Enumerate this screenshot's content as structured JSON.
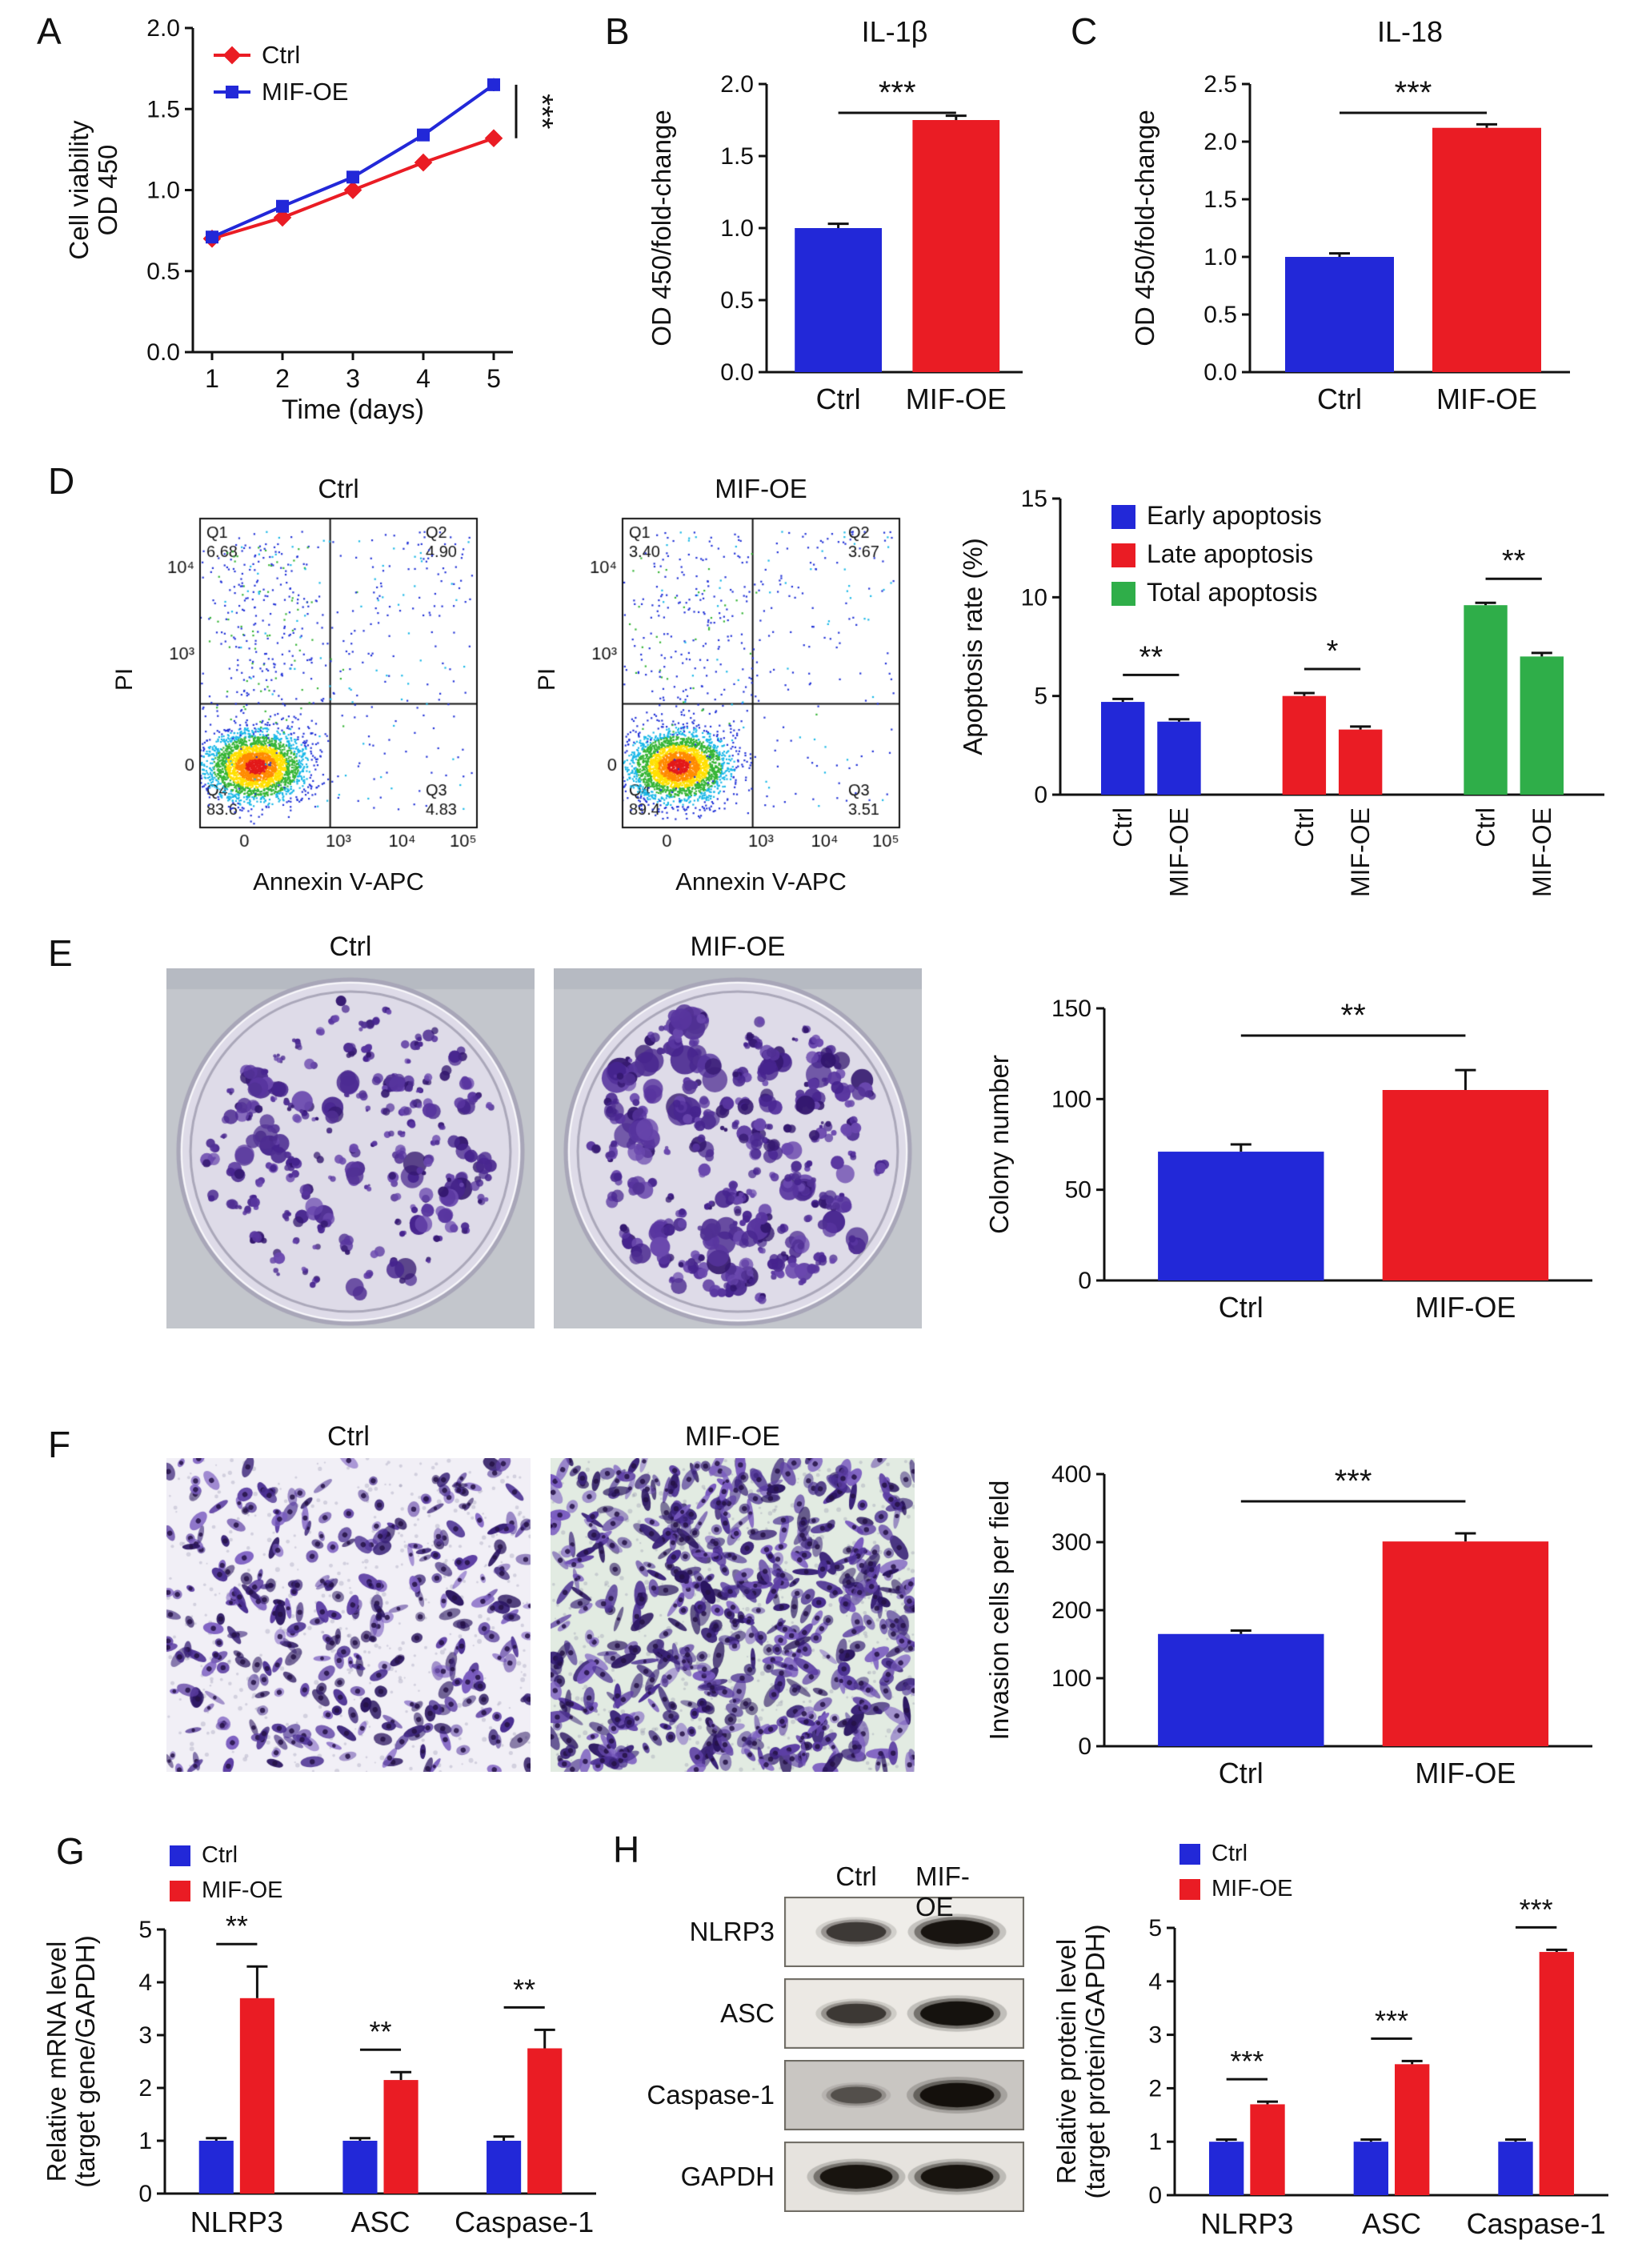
{
  "colors": {
    "ctrl_bar": "#2228d8",
    "mif_bar": "#ea1c24",
    "total_bar": "#2fae49"
  },
  "chart_data": [
    {
      "type": "line",
      "xlabel": "Time (days)",
      "ylabel": "Cell viability\nOD 450",
      "x": [
        1,
        2,
        3,
        4,
        5
      ],
      "ylim": [
        0,
        2
      ],
      "yticks": [
        0,
        0.5,
        1,
        1.5,
        2
      ],
      "series": [
        {
          "name": "Ctrl",
          "color": "#ea1c24",
          "marker": "diamond",
          "values": [
            0.7,
            0.83,
            1.0,
            1.17,
            1.32
          ],
          "errors": [
            0.02,
            0.02,
            0.03,
            0.03,
            0.04
          ]
        },
        {
          "name": "MIF-OE",
          "color": "#2228d8",
          "marker": "square",
          "values": [
            0.71,
            0.9,
            1.08,
            1.34,
            1.65
          ],
          "errors": [
            0.02,
            0.02,
            0.03,
            0.03,
            0.04
          ]
        }
      ],
      "sig": "***"
    },
    {
      "type": "bar",
      "title": "IL-1β",
      "ylabel": "OD 450/fold-change",
      "categories": [
        "Ctrl",
        "MIF-OE"
      ],
      "values": [
        1.0,
        1.75
      ],
      "errors": [
        0.03,
        0.03
      ],
      "colors": [
        "#2228d8",
        "#ea1c24"
      ],
      "ylim": [
        0,
        2
      ],
      "yticks": [
        0,
        0.5,
        1,
        1.5,
        2
      ],
      "sig": "***"
    },
    {
      "type": "bar",
      "title": "IL-18",
      "ylabel": "OD 450/fold-change",
      "categories": [
        "Ctrl",
        "MIF-OE"
      ],
      "values": [
        1.0,
        2.12
      ],
      "errors": [
        0.03,
        0.03
      ],
      "colors": [
        "#2228d8",
        "#ea1c24"
      ],
      "ylim": [
        0,
        2.5
      ],
      "yticks": [
        0,
        0.5,
        1,
        1.5,
        2,
        2.5
      ],
      "sig": "***"
    },
    {
      "type": "pairs",
      "ylabel": "Apoptosis rate (%)",
      "ylim": [
        0,
        15
      ],
      "yticks": [
        0,
        5,
        10,
        15
      ],
      "bar_labels": [
        "Ctrl",
        "MIF-OE"
      ],
      "groups": [
        {
          "name": "Early apoptosis",
          "color": "#2228d8",
          "values": [
            4.7,
            3.7
          ],
          "errors": [
            0.15,
            0.12
          ],
          "sig": "**"
        },
        {
          "name": "Late apoptosis",
          "color": "#ea1c24",
          "values": [
            5.0,
            3.3
          ],
          "errors": [
            0.15,
            0.15
          ],
          "sig": "*"
        },
        {
          "name": "Total apoptosis",
          "color": "#2fae49",
          "values": [
            9.6,
            7.0
          ],
          "errors": [
            0.12,
            0.18
          ],
          "sig": "**"
        }
      ]
    },
    {
      "type": "bar",
      "ylabel": "Colony number",
      "categories": [
        "Ctrl",
        "MIF-OE"
      ],
      "values": [
        71,
        105
      ],
      "errors": [
        4,
        11
      ],
      "colors": [
        "#2228d8",
        "#ea1c24"
      ],
      "ylim": [
        0,
        150
      ],
      "yticks": [
        0,
        50,
        100,
        150
      ],
      "sig": "**"
    },
    {
      "type": "bar",
      "ylabel": "Invasion cells per field",
      "categories": [
        "Ctrl",
        "MIF-OE"
      ],
      "values": [
        165,
        301
      ],
      "errors": [
        5,
        12
      ],
      "colors": [
        "#2228d8",
        "#ea1c24"
      ],
      "ylim": [
        0,
        400
      ],
      "yticks": [
        0,
        100,
        200,
        300,
        400
      ],
      "sig": "***"
    },
    {
      "type": "grouped",
      "ylabel": "Relative mRNA level\n(target gene/GAPDH)",
      "ylim": [
        0,
        5
      ],
      "yticks": [
        0,
        1,
        2,
        3,
        4,
        5
      ],
      "categories": [
        "NLRP3",
        "ASC",
        "Caspase-1"
      ],
      "series": [
        {
          "name": "Ctrl",
          "color": "#2228d8",
          "values": [
            1.0,
            1.0,
            1.0
          ],
          "errors": [
            0.05,
            0.05,
            0.08
          ]
        },
        {
          "name": "MIF-OE",
          "color": "#ea1c24",
          "values": [
            3.7,
            2.15,
            2.75
          ],
          "errors": [
            0.6,
            0.15,
            0.35
          ]
        }
      ],
      "sig": [
        "**",
        "**",
        "**"
      ]
    },
    {
      "type": "grouped",
      "ylabel": "Relative protein level\n(target protein/GAPDH)",
      "ylim": [
        0,
        5
      ],
      "yticks": [
        0,
        1,
        2,
        3,
        4,
        5
      ],
      "categories": [
        "NLRP3",
        "ASC",
        "Caspase-1"
      ],
      "series": [
        {
          "name": "Ctrl",
          "color": "#2228d8",
          "values": [
            1.0,
            1.0,
            1.0
          ],
          "errors": [
            0.04,
            0.04,
            0.04
          ]
        },
        {
          "name": "MIF-OE",
          "color": "#ea1c24",
          "values": [
            1.7,
            2.45,
            4.55
          ],
          "errors": [
            0.05,
            0.06,
            0.04
          ]
        }
      ],
      "sig": [
        "***",
        "***",
        "***"
      ]
    }
  ],
  "panels": {
    "A": {
      "label": "A"
    },
    "B": {
      "label": "B"
    },
    "C": {
      "label": "C"
    },
    "D": {
      "label": "D",
      "flow": [
        {
          "title": "Ctrl",
          "xlabel": "Annexin V-APC",
          "ylabel": "PI",
          "yticks": [
            "10⁴",
            "10³",
            "0"
          ],
          "xticks": [
            "0",
            "10³",
            "10⁴",
            "10⁵"
          ],
          "quadrants": [
            {
              "label": "Q1",
              "value": "6.68"
            },
            {
              "label": "Q2",
              "value": "4.90"
            },
            {
              "label": "Q3",
              "value": "4.83"
            },
            {
              "label": "Q4",
              "value": "83.6"
            }
          ]
        },
        {
          "title": "MIF-OE",
          "xlabel": "Annexin V-APC",
          "ylabel": "PI",
          "yticks": [
            "10⁴",
            "10³",
            "0"
          ],
          "xticks": [
            "0",
            "10³",
            "10⁴",
            "10⁵"
          ],
          "quadrants": [
            {
              "label": "Q1",
              "value": "3.40"
            },
            {
              "label": "Q2",
              "value": "3.67"
            },
            {
              "label": "Q3",
              "value": "3.51"
            },
            {
              "label": "Q4",
              "value": "89.4"
            }
          ]
        }
      ]
    },
    "E": {
      "label": "E",
      "images": [
        {
          "title": "Ctrl"
        },
        {
          "title": "MIF-OE"
        }
      ]
    },
    "F": {
      "label": "F",
      "images": [
        {
          "title": "Ctrl"
        },
        {
          "title": "MIF-OE"
        }
      ]
    },
    "G": {
      "label": "G"
    },
    "H": {
      "label": "H",
      "blot": {
        "col_labels": [
          "Ctrl",
          "MIF-OE"
        ],
        "rows": [
          {
            "name": "NLRP3",
            "bands": [
              0.55,
              0.92
            ],
            "bg": "#efede9"
          },
          {
            "name": "ASC",
            "bands": [
              0.55,
              0.95
            ],
            "bg": "#ece9e4"
          },
          {
            "name": "Caspase-1",
            "bands": [
              0.3,
              0.97
            ],
            "bg": "#c9c6c2"
          },
          {
            "name": "GAPDH",
            "bands": [
              0.92,
              0.92
            ],
            "bg": "#e6e3de"
          }
        ]
      }
    }
  }
}
